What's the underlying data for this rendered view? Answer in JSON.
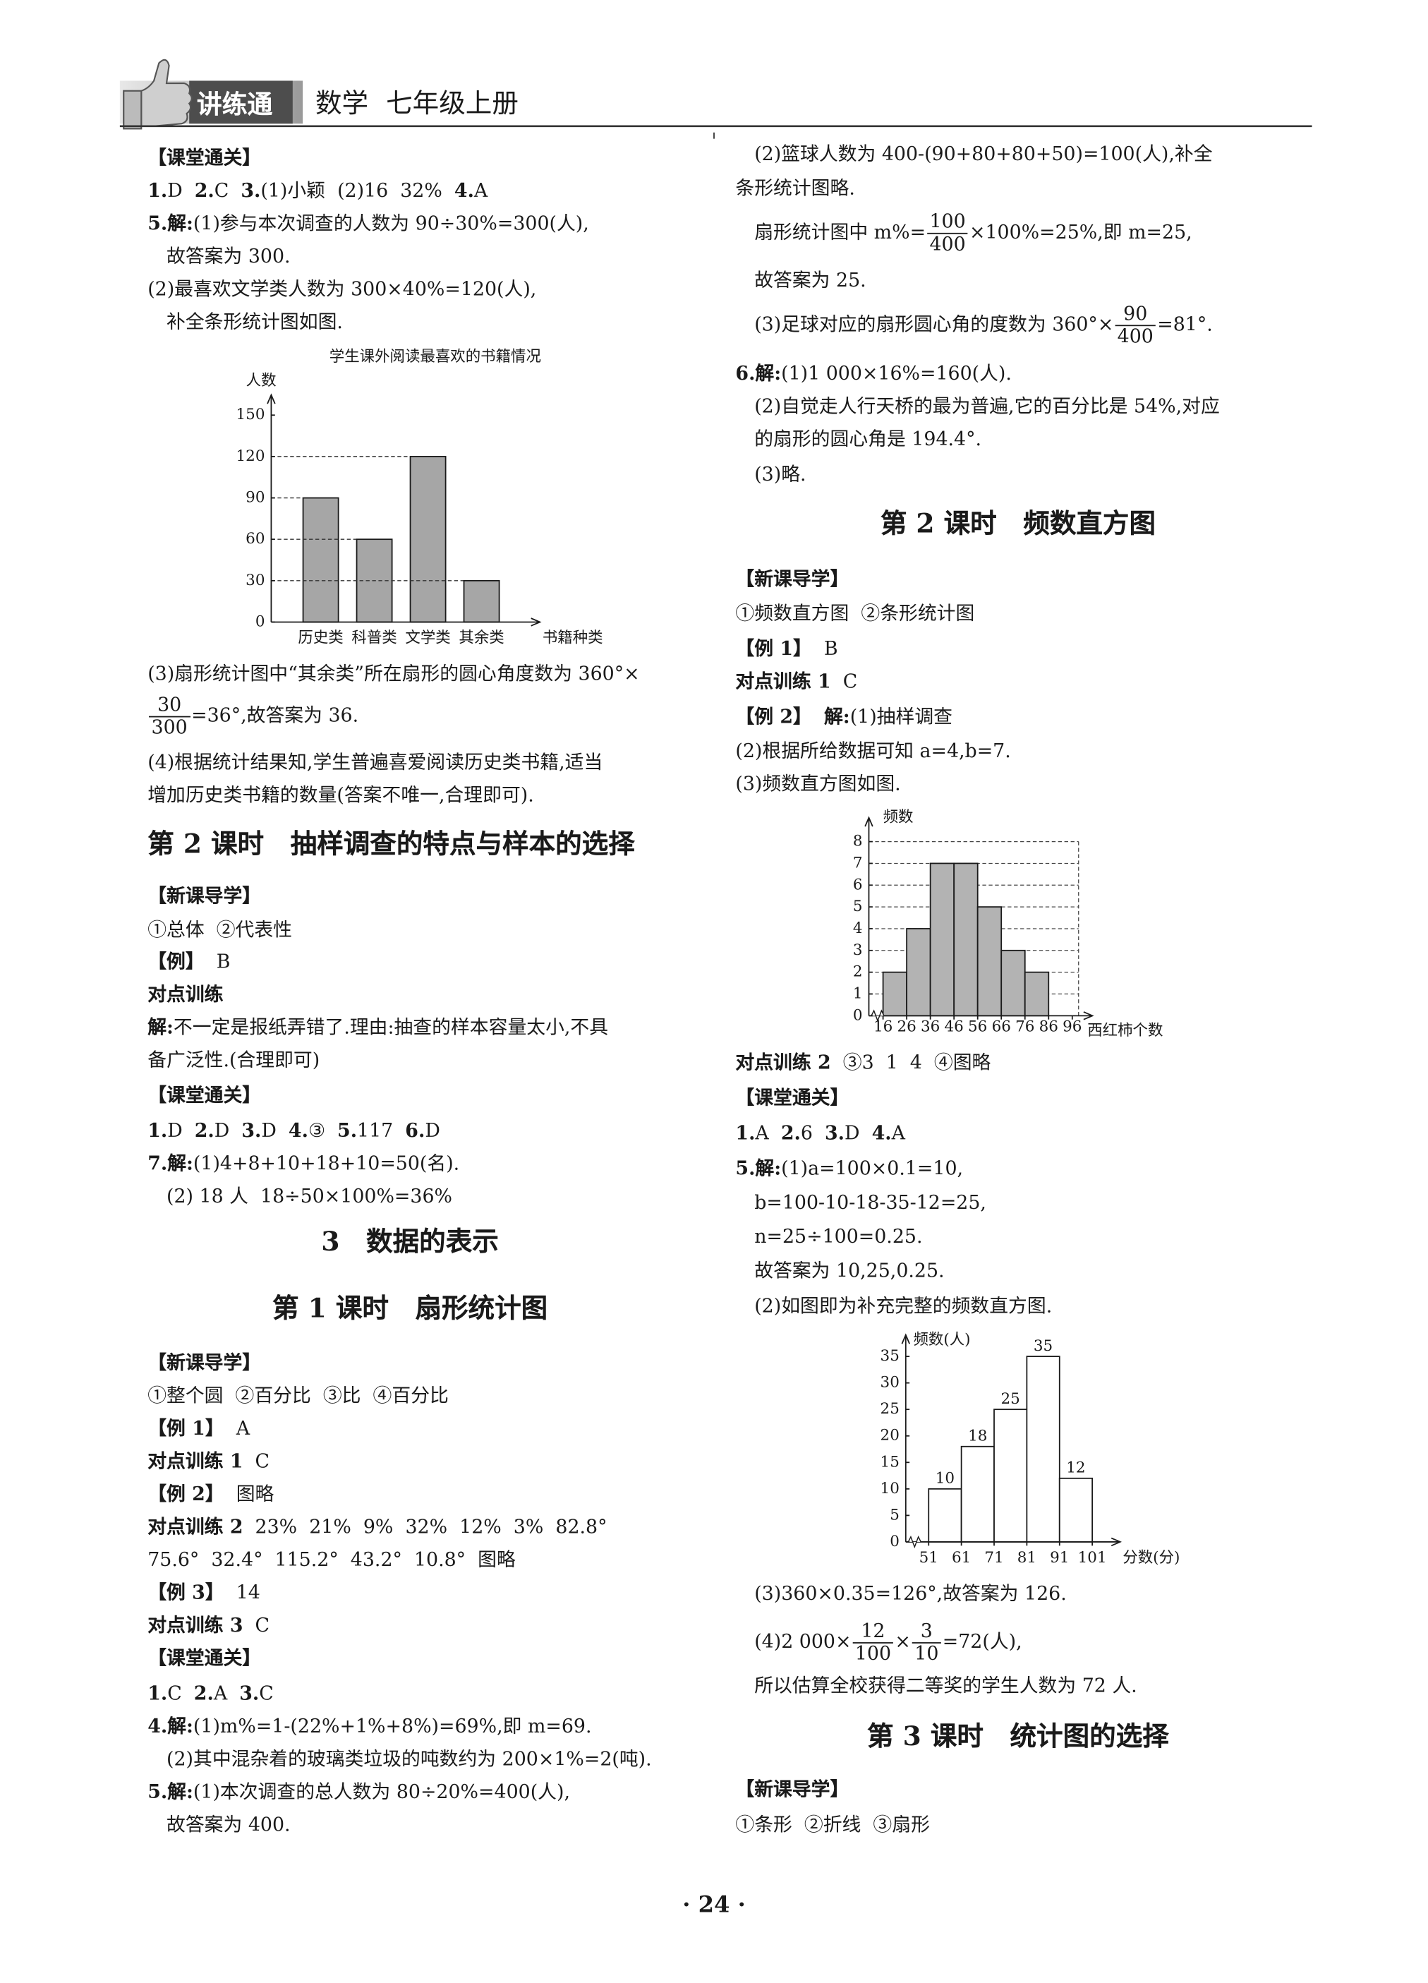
{
  "header": {
    "brand": "讲练通",
    "subject": "数学",
    "book": "七年级上册"
  },
  "left": [
    [
      {
        "bold": "【课堂通关】"
      }
    ],
    [
      {
        "bold": "1."
      },
      "D  ",
      {
        "bold": "2."
      },
      "C  ",
      {
        "bold": "3."
      },
      "(1)小颖  (2)16  32%  ",
      {
        "bold": "4."
      },
      "A"
    ],
    [
      {
        "bold": "5.解:"
      },
      "(1)参与本次调查的人数为 90÷30%=300(人),"
    ],
    [
      "故答案为 300."
    ],
    [
      "(2)最喜欢文学类人数为 300×40%=120(人),"
    ],
    [
      "补全条形统计图如图."
    ],
    [
      "(3)扇形统计图中“其余类”所在扇形的圆心角度数为 360°×"
    ],
    [
      {
        "num": "30",
        "den": "300"
      },
      "=36°,故答案为 36."
    ],
    [
      "(4)根据统计结果知,学生普遍喜爱阅读历史类书籍,适当"
    ],
    [
      "增加历史类书籍的数量(答案不唯一,合理即可)."
    ],
    [
      {
        "heading": "第 2 课时　抽样调查的特点与样本的选择"
      }
    ],
    [
      {
        "bold": "【新课导学】"
      }
    ],
    [
      "①总体  ②代表性"
    ],
    [
      {
        "bold": "【例】"
      },
      "  B"
    ],
    [
      {
        "bold": "对点训练"
      }
    ],
    [
      {
        "bold": "解:"
      },
      "不一定是报纸弄错了.理由:抽查的样本容量太小,不具"
    ],
    [
      "备广泛性.(合理即可)"
    ],
    [
      {
        "bold": "【课堂通关】"
      }
    ],
    [
      {
        "bold": "1."
      },
      "D  ",
      {
        "bold": "2."
      },
      "D  ",
      {
        "bold": "3."
      },
      "D  ",
      {
        "bold": "4."
      },
      "③  ",
      {
        "bold": "5."
      },
      "117  ",
      {
        "bold": "6."
      },
      "D"
    ],
    [
      {
        "bold": "7.解:"
      },
      "(1)4+8+10+18+10=50(名)."
    ],
    [
      "(2) 18 人  18÷50×100%=36%"
    ],
    [
      {
        "heading": "3　数据的表示"
      }
    ],
    [
      {
        "heading": "第 1 课时　扇形统计图"
      }
    ],
    [
      {
        "bold": "【新课导学】"
      }
    ],
    [
      "①整个圆  ②百分比  ③比  ④百分比"
    ],
    [
      {
        "bold": "【例 1】"
      },
      "  A"
    ],
    [
      {
        "bold": "对点训练 1"
      },
      "  C"
    ],
    [
      {
        "bold": "【例 2】"
      },
      "  图略"
    ],
    [
      {
        "bold": "对点训练 2"
      },
      "  23%  21%  9%  32%  12%  3%  82.8°"
    ],
    [
      "75.6°  32.4°  115.2°  43.2°  10.8°  图略"
    ],
    [
      {
        "bold": "【例 3】"
      },
      "  14"
    ],
    [
      {
        "bold": "对点训练 3"
      },
      "  C"
    ],
    [
      {
        "bold": "【课堂通关】"
      }
    ],
    [
      {
        "bold": "1."
      },
      "C  ",
      {
        "bold": "2."
      },
      "A  ",
      {
        "bold": "3."
      },
      "C"
    ],
    [
      {
        "bold": "4.解:"
      },
      "(1)m%=1-(22%+1%+8%)=69%,即 m=69."
    ],
    [
      "(2)其中混杂着的玻璃类垃圾的吨数约为 200×1%=2(吨)."
    ],
    [
      {
        "bold": "5.解:"
      },
      "(1)本次调查的总人数为 80÷20%=400(人),"
    ],
    [
      "故答案为 400."
    ]
  ],
  "right": [
    [
      "(2)篮球人数为 400-(90+80+80+50)=100(人),补全"
    ],
    [
      "条形统计图略."
    ],
    [
      "扇形统计图中 m%=",
      {
        "num": "100",
        "den": "400"
      },
      "×100%=25%,即 m=25,"
    ],
    [
      "故答案为 25."
    ],
    [
      "(3)足球对应的扇形圆心角的度数为 360°×",
      {
        "num": "90",
        "den": "400"
      },
      "=81°."
    ],
    [
      {
        "bold": "6.解:"
      },
      "(1)1 000×16%=160(人)."
    ],
    [
      "(2)自觉走人行天桥的最为普遍,它的百分比是 54%,对应"
    ],
    [
      "的扇形的圆心角是 194.4°."
    ],
    [
      "(3)略."
    ],
    [
      {
        "heading": "第 2 课时　频数直方图"
      }
    ],
    [
      {
        "bold": "【新课导学】"
      }
    ],
    [
      "①频数直方图  ②条形统计图"
    ],
    [
      {
        "bold": "【例 1】"
      },
      "  B"
    ],
    [
      {
        "bold": "对点训练 1"
      },
      "  C"
    ],
    [
      {
        "bold": "【例 2】"
      },
      "  ",
      {
        "bold": "解:"
      },
      "(1)抽样调查"
    ],
    [
      "(2)根据所给数据可知 a=4,b=7."
    ],
    [
      "(3)频数直方图如图."
    ],
    [
      {
        "bold": "对点训练 2"
      },
      "  ③3  1  4  ④图略"
    ],
    [
      {
        "bold": "【课堂通关】"
      }
    ],
    [
      {
        "bold": "1."
      },
      "A  ",
      {
        "bold": "2."
      },
      "6  ",
      {
        "bold": "3."
      },
      "D  ",
      {
        "bold": "4."
      },
      "A"
    ],
    [
      {
        "bold": "5.解:"
      },
      "(1)a=100×0.1=10,"
    ],
    [
      "b=100-10-18-35-12=25,"
    ],
    [
      "n=25÷100=0.25."
    ],
    [
      "故答案为 10,25,0.25."
    ],
    [
      "(2)如图即为补充完整的频数直方图."
    ],
    [
      "(3)360×0.35=126°,故答案为 126."
    ],
    [
      "(4)2 000×",
      {
        "num": "12",
        "den": "100"
      },
      "×",
      {
        "num": "3",
        "den": "10"
      },
      "=72(人),"
    ],
    [
      "所以估算全校获得二等奖的学生人数为 72 人."
    ],
    [
      {
        "heading": "第 3 课时　统计图的选择"
      }
    ],
    [
      {
        "bold": "【新课导学】"
      }
    ],
    [
      "①条形  ②折线  ③扇形"
    ]
  ],
  "page_number": "· 24 ·",
  "chart_data": [
    {
      "type": "bar",
      "title": "学生课外阅读最喜欢的书籍情况",
      "y_label": "人数",
      "x_label": "书籍种类",
      "categories": [
        "历史类",
        "科普类",
        "文学类",
        "其余类"
      ],
      "values": [
        90,
        60,
        120,
        30
      ],
      "color": "#a6a6a6",
      "ylim": [
        0,
        150
      ],
      "yticks": [
        0,
        30,
        60,
        90,
        120,
        150
      ],
      "grid": false
    },
    {
      "type": "histogram",
      "y_label": "频数",
      "x_label": "西红柿个数",
      "bins": [
        16,
        26,
        36,
        46,
        56,
        66,
        76,
        86
      ],
      "values": [
        2,
        4,
        7,
        7,
        5,
        3,
        2
      ],
      "color": "#b3b3b3",
      "xlim": [
        10,
        104
      ],
      "xticks": [
        16,
        26,
        36,
        46,
        56,
        66,
        76,
        86,
        96
      ],
      "ylim": [
        0,
        8
      ],
      "yticks": [
        0,
        1,
        2,
        3,
        4,
        5,
        6,
        7,
        8
      ],
      "grid": true,
      "data_labels": false
    },
    {
      "type": "histogram",
      "y_label": "频数(人)",
      "x_label": "分数(分)",
      "bins": [
        51,
        61,
        71,
        81,
        91,
        101
      ],
      "values": [
        10,
        18,
        25,
        35,
        12
      ],
      "color": "#ffffff",
      "xlim": [
        44,
        109
      ],
      "xticks": [
        51,
        61,
        71,
        81,
        91,
        101
      ],
      "ylim": [
        0,
        35
      ],
      "yticks": [
        0,
        5,
        10,
        15,
        20,
        25,
        30,
        35
      ],
      "grid": false,
      "data_labels": true
    }
  ]
}
